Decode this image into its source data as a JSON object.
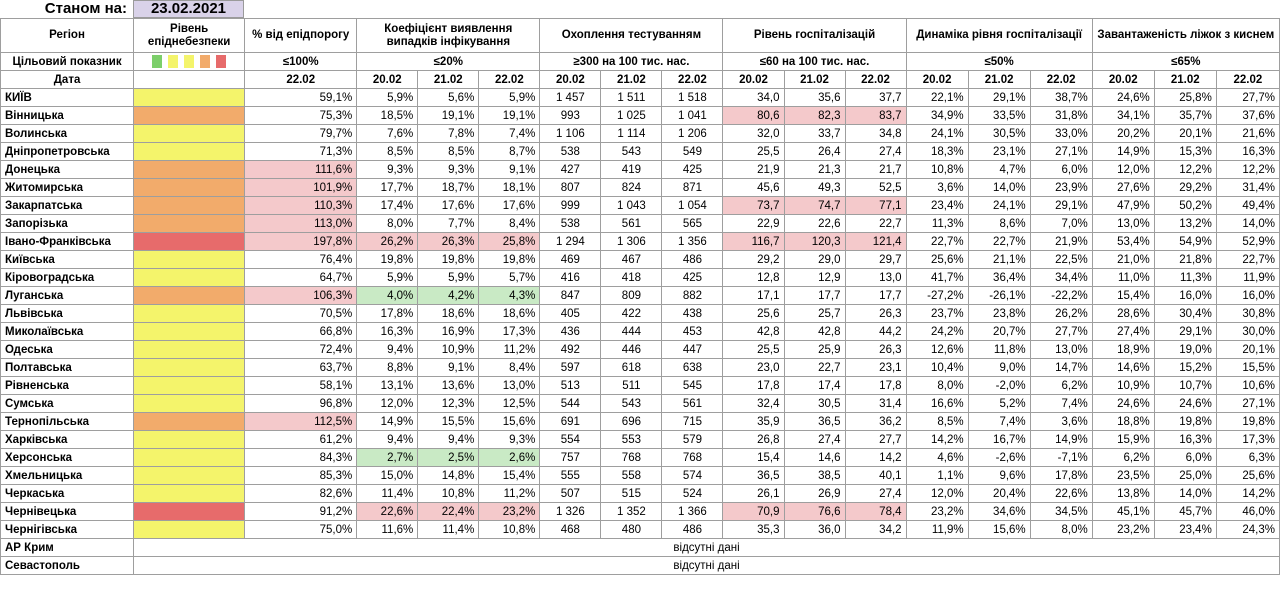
{
  "header": {
    "as_of_label": "Станом на:",
    "as_of_date": "23.02.2021"
  },
  "columns": {
    "region": "Регіон",
    "level": "Рівень епіднебезпеки",
    "pct_threshold": "% від епідпорогу",
    "detection": "Коефіцієнт виявлення випадків інфікування",
    "testing": "Охоплення тестуванням",
    "hospital": "Рівень госпіталізацій",
    "hosp_dynamics": "Динаміка рівня госпіталізації",
    "oxygen": "Завантаженість ліжок з киснем"
  },
  "target_row": {
    "label": "Цільовий показник",
    "pct_threshold": "≤100%",
    "detection": "≤20%",
    "testing": "≥300 на 100 тис. нас.",
    "hospital": "≤60 на 100 тис. нас.",
    "hosp_dynamics": "≤50%",
    "oxygen": "≤65%"
  },
  "date_row": {
    "label": "Дата",
    "single": "22.02",
    "triple": [
      "20.02",
      "21.02",
      "22.02"
    ]
  },
  "level_colors": {
    "yellow": "#f4f46b",
    "orange": "#f2ab6b",
    "red": "#e76b6b",
    "green": "#7ccf6a",
    "pink": "#f4c9cb",
    "lightgreen": "#c9eac5"
  },
  "legend_swatches": [
    "green",
    "yellow",
    "yellow",
    "orange",
    "red"
  ],
  "rows": [
    {
      "region": "КИЇВ",
      "level": "yellow",
      "pct": "59,1%",
      "det": [
        "5,9%",
        "5,6%",
        "5,9%"
      ],
      "test": [
        "1 457",
        "1 511",
        "1 518"
      ],
      "hosp": [
        "34,0",
        "35,6",
        "37,7"
      ],
      "dyn": [
        "22,1%",
        "29,1%",
        "38,7%"
      ],
      "oxy": [
        "24,6%",
        "25,8%",
        "27,7%"
      ]
    },
    {
      "region": "Вінницька",
      "level": "orange",
      "pct": "75,3%",
      "det": [
        "18,5%",
        "19,1%",
        "19,1%"
      ],
      "test": [
        "993",
        "1 025",
        "1 041"
      ],
      "hosp": [
        "80,6",
        "82,3",
        "83,7"
      ],
      "hosp_hl": true,
      "dyn": [
        "34,9%",
        "33,5%",
        "31,8%"
      ],
      "oxy": [
        "34,1%",
        "35,7%",
        "37,6%"
      ]
    },
    {
      "region": "Волинська",
      "level": "yellow",
      "pct": "79,7%",
      "det": [
        "7,6%",
        "7,8%",
        "7,4%"
      ],
      "test": [
        "1 106",
        "1 114",
        "1 206"
      ],
      "hosp": [
        "32,0",
        "33,7",
        "34,8"
      ],
      "dyn": [
        "24,1%",
        "30,5%",
        "33,0%"
      ],
      "oxy": [
        "20,2%",
        "20,1%",
        "21,6%"
      ]
    },
    {
      "region": "Дніпропетровська",
      "level": "yellow",
      "pct": "71,3%",
      "det": [
        "8,5%",
        "8,5%",
        "8,7%"
      ],
      "test": [
        "538",
        "543",
        "549"
      ],
      "hosp": [
        "25,5",
        "26,4",
        "27,4"
      ],
      "dyn": [
        "18,3%",
        "23,1%",
        "27,1%"
      ],
      "oxy": [
        "14,9%",
        "15,3%",
        "16,3%"
      ]
    },
    {
      "region": "Донецька",
      "level": "orange",
      "pct": "111,6%",
      "pct_hl": true,
      "det": [
        "9,3%",
        "9,3%",
        "9,1%"
      ],
      "test": [
        "427",
        "419",
        "425"
      ],
      "hosp": [
        "21,9",
        "21,3",
        "21,7"
      ],
      "dyn": [
        "10,8%",
        "4,7%",
        "6,0%"
      ],
      "oxy": [
        "12,0%",
        "12,2%",
        "12,2%"
      ]
    },
    {
      "region": "Житомирська",
      "level": "orange",
      "pct": "101,9%",
      "pct_hl": true,
      "det": [
        "17,7%",
        "18,7%",
        "18,1%"
      ],
      "test": [
        "807",
        "824",
        "871"
      ],
      "hosp": [
        "45,6",
        "49,3",
        "52,5"
      ],
      "dyn": [
        "3,6%",
        "14,0%",
        "23,9%"
      ],
      "oxy": [
        "27,6%",
        "29,2%",
        "31,4%"
      ]
    },
    {
      "region": "Закарпатська",
      "level": "orange",
      "pct": "110,3%",
      "pct_hl": true,
      "det": [
        "17,4%",
        "17,6%",
        "17,6%"
      ],
      "test": [
        "999",
        "1 043",
        "1 054"
      ],
      "hosp": [
        "73,7",
        "74,7",
        "77,1"
      ],
      "hosp_hl": true,
      "dyn": [
        "23,4%",
        "24,1%",
        "29,1%"
      ],
      "oxy": [
        "47,9%",
        "50,2%",
        "49,4%"
      ]
    },
    {
      "region": "Запорізька",
      "level": "orange",
      "pct": "113,0%",
      "pct_hl": true,
      "det": [
        "8,0%",
        "7,7%",
        "8,4%"
      ],
      "test": [
        "538",
        "561",
        "565"
      ],
      "hosp": [
        "22,9",
        "22,6",
        "22,7"
      ],
      "dyn": [
        "11,3%",
        "8,6%",
        "7,0%"
      ],
      "oxy": [
        "13,0%",
        "13,2%",
        "14,0%"
      ]
    },
    {
      "region": "Івано-Франківська",
      "level": "red",
      "pct": "197,8%",
      "pct_hl": true,
      "det": [
        "26,2%",
        "26,3%",
        "25,8%"
      ],
      "det_hl": "pink",
      "test": [
        "1 294",
        "1 306",
        "1 356"
      ],
      "hosp": [
        "116,7",
        "120,3",
        "121,4"
      ],
      "hosp_hl": true,
      "dyn": [
        "22,7%",
        "22,7%",
        "21,9%"
      ],
      "oxy": [
        "53,4%",
        "54,9%",
        "52,9%"
      ]
    },
    {
      "region": "Київська",
      "level": "yellow",
      "pct": "76,4%",
      "det": [
        "19,8%",
        "19,8%",
        "19,8%"
      ],
      "test": [
        "469",
        "467",
        "486"
      ],
      "hosp": [
        "29,2",
        "29,0",
        "29,7"
      ],
      "dyn": [
        "25,6%",
        "21,1%",
        "22,5%"
      ],
      "oxy": [
        "21,0%",
        "21,8%",
        "22,7%"
      ]
    },
    {
      "region": "Кіровоградська",
      "level": "yellow",
      "pct": "64,7%",
      "det": [
        "5,9%",
        "5,9%",
        "5,7%"
      ],
      "test": [
        "416",
        "418",
        "425"
      ],
      "hosp": [
        "12,8",
        "12,9",
        "13,0"
      ],
      "dyn": [
        "41,7%",
        "36,4%",
        "34,4%"
      ],
      "oxy": [
        "11,0%",
        "11,3%",
        "11,9%"
      ]
    },
    {
      "region": "Луганська",
      "level": "orange",
      "pct": "106,3%",
      "pct_hl": true,
      "det": [
        "4,0%",
        "4,2%",
        "4,3%"
      ],
      "det_hl": "green",
      "test": [
        "847",
        "809",
        "882"
      ],
      "hosp": [
        "17,1",
        "17,7",
        "17,7"
      ],
      "dyn": [
        "-27,2%",
        "-26,1%",
        "-22,2%"
      ],
      "oxy": [
        "15,4%",
        "16,0%",
        "16,0%"
      ]
    },
    {
      "region": "Львівська",
      "level": "yellow",
      "pct": "70,5%",
      "det": [
        "17,8%",
        "18,6%",
        "18,6%"
      ],
      "test": [
        "405",
        "422",
        "438"
      ],
      "hosp": [
        "25,6",
        "25,7",
        "26,3"
      ],
      "dyn": [
        "23,7%",
        "23,8%",
        "26,2%"
      ],
      "oxy": [
        "28,6%",
        "30,4%",
        "30,8%"
      ]
    },
    {
      "region": "Миколаївська",
      "level": "yellow",
      "pct": "66,8%",
      "det": [
        "16,3%",
        "16,9%",
        "17,3%"
      ],
      "test": [
        "436",
        "444",
        "453"
      ],
      "hosp": [
        "42,8",
        "42,8",
        "44,2"
      ],
      "dyn": [
        "24,2%",
        "20,7%",
        "27,7%"
      ],
      "oxy": [
        "27,4%",
        "29,1%",
        "30,0%"
      ]
    },
    {
      "region": "Одеська",
      "level": "yellow",
      "pct": "72,4%",
      "det": [
        "9,4%",
        "10,9%",
        "11,2%"
      ],
      "test": [
        "492",
        "446",
        "447"
      ],
      "hosp": [
        "25,5",
        "25,9",
        "26,3"
      ],
      "dyn": [
        "12,6%",
        "11,8%",
        "13,0%"
      ],
      "oxy": [
        "18,9%",
        "19,0%",
        "20,1%"
      ]
    },
    {
      "region": "Полтавська",
      "level": "yellow",
      "pct": "63,7%",
      "det": [
        "8,8%",
        "9,1%",
        "8,4%"
      ],
      "test": [
        "597",
        "618",
        "638"
      ],
      "hosp": [
        "23,0",
        "22,7",
        "23,1"
      ],
      "dyn": [
        "10,4%",
        "9,0%",
        "14,7%"
      ],
      "oxy": [
        "14,6%",
        "15,2%",
        "15,5%"
      ]
    },
    {
      "region": "Рівненська",
      "level": "yellow",
      "pct": "58,1%",
      "det": [
        "13,1%",
        "13,6%",
        "13,0%"
      ],
      "test": [
        "513",
        "511",
        "545"
      ],
      "hosp": [
        "17,8",
        "17,4",
        "17,8"
      ],
      "dyn": [
        "8,0%",
        "-2,0%",
        "6,2%"
      ],
      "oxy": [
        "10,9%",
        "10,7%",
        "10,6%"
      ]
    },
    {
      "region": "Сумська",
      "level": "yellow",
      "pct": "96,8%",
      "det": [
        "12,0%",
        "12,3%",
        "12,5%"
      ],
      "test": [
        "544",
        "543",
        "561"
      ],
      "hosp": [
        "32,4",
        "30,5",
        "31,4"
      ],
      "dyn": [
        "16,6%",
        "5,2%",
        "7,4%"
      ],
      "oxy": [
        "24,6%",
        "24,6%",
        "27,1%"
      ]
    },
    {
      "region": "Тернопільська",
      "level": "orange",
      "pct": "112,5%",
      "pct_hl": true,
      "det": [
        "14,9%",
        "15,5%",
        "15,6%"
      ],
      "test": [
        "691",
        "696",
        "715"
      ],
      "hosp": [
        "35,9",
        "36,5",
        "36,2"
      ],
      "dyn": [
        "8,5%",
        "7,4%",
        "3,6%"
      ],
      "oxy": [
        "18,8%",
        "19,8%",
        "19,8%"
      ]
    },
    {
      "region": "Харківська",
      "level": "yellow",
      "pct": "61,2%",
      "det": [
        "9,4%",
        "9,4%",
        "9,3%"
      ],
      "test": [
        "554",
        "553",
        "579"
      ],
      "hosp": [
        "26,8",
        "27,4",
        "27,7"
      ],
      "dyn": [
        "14,2%",
        "16,7%",
        "14,9%"
      ],
      "oxy": [
        "15,9%",
        "16,3%",
        "17,3%"
      ]
    },
    {
      "region": "Херсонська",
      "level": "yellow",
      "pct": "84,3%",
      "det": [
        "2,7%",
        "2,5%",
        "2,6%"
      ],
      "det_hl": "green",
      "test": [
        "757",
        "768",
        "768"
      ],
      "hosp": [
        "15,4",
        "14,6",
        "14,2"
      ],
      "dyn": [
        "4,6%",
        "-2,6%",
        "-7,1%"
      ],
      "oxy": [
        "6,2%",
        "6,0%",
        "6,3%"
      ]
    },
    {
      "region": "Хмельницька",
      "level": "yellow",
      "pct": "85,3%",
      "det": [
        "15,0%",
        "14,8%",
        "15,4%"
      ],
      "test": [
        "555",
        "558",
        "574"
      ],
      "hosp": [
        "36,5",
        "38,5",
        "40,1"
      ],
      "dyn": [
        "1,1%",
        "9,6%",
        "17,8%"
      ],
      "oxy": [
        "23,5%",
        "25,0%",
        "25,6%"
      ]
    },
    {
      "region": "Черкаська",
      "level": "yellow",
      "pct": "82,6%",
      "det": [
        "11,4%",
        "10,8%",
        "11,2%"
      ],
      "test": [
        "507",
        "515",
        "524"
      ],
      "hosp": [
        "26,1",
        "26,9",
        "27,4"
      ],
      "dyn": [
        "12,0%",
        "20,4%",
        "22,6%"
      ],
      "oxy": [
        "13,8%",
        "14,0%",
        "14,2%"
      ]
    },
    {
      "region": "Чернівецька",
      "level": "red",
      "pct": "91,2%",
      "det": [
        "22,6%",
        "22,4%",
        "23,2%"
      ],
      "det_hl": "pink",
      "test": [
        "1 326",
        "1 352",
        "1 366"
      ],
      "hosp": [
        "70,9",
        "76,6",
        "78,4"
      ],
      "hosp_hl": true,
      "dyn": [
        "23,2%",
        "34,6%",
        "34,5%"
      ],
      "oxy": [
        "45,1%",
        "45,7%",
        "46,0%"
      ]
    },
    {
      "region": "Чернігівська",
      "level": "yellow",
      "pct": "75,0%",
      "det": [
        "11,6%",
        "11,4%",
        "10,8%"
      ],
      "test": [
        "468",
        "480",
        "486"
      ],
      "hosp": [
        "35,3",
        "36,0",
        "34,2"
      ],
      "dyn": [
        "11,9%",
        "15,6%",
        "8,0%"
      ],
      "oxy": [
        "23,2%",
        "23,4%",
        "24,3%"
      ]
    }
  ],
  "no_data_rows": [
    {
      "region": "АР Крим",
      "text": "відсутні дані"
    },
    {
      "region": "Севастополь",
      "text": "відсутні дані"
    }
  ]
}
